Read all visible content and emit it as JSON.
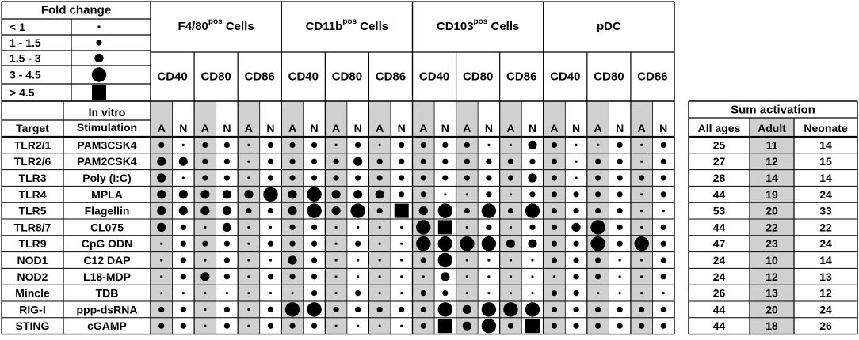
{
  "fold_legend": {
    "title": "Fold change",
    "entries": [
      {
        "label": "< 1",
        "marker": "tiny-dot"
      },
      {
        "label": "1 - 1.5",
        "marker": "small-dot"
      },
      {
        "label": "1.5 - 3",
        "marker": "medium-dot"
      },
      {
        "label": "3 - 4.5",
        "marker": "large-dot"
      },
      {
        "label": "> 4.5",
        "marker": "square"
      }
    ]
  },
  "cell_groups": [
    {
      "name": "F4/80",
      "sup": "pos",
      "suffix": " Cells"
    },
    {
      "name": "CD11b",
      "sup": "pos",
      "suffix": " Cells"
    },
    {
      "name": "CD103",
      "sup": "pos",
      "suffix": " Cells"
    },
    {
      "name": "pDC",
      "sup": "",
      "suffix": ""
    }
  ],
  "markers": [
    "CD40",
    "CD80",
    "CD86"
  ],
  "ages": [
    "A",
    "N"
  ],
  "row_header": {
    "target": "Target",
    "stim_line1": "In vitro",
    "stim_line2": "Stimulation"
  },
  "rows": [
    {
      "target": "TLR2/1",
      "stim": "PAM3CSK4",
      "levels": [
        2,
        1,
        2,
        2,
        1,
        2,
        2,
        2,
        1,
        2,
        1,
        2,
        2,
        2,
        2,
        1,
        1,
        3,
        2,
        1,
        1,
        2,
        1,
        2
      ],
      "sum": [
        25,
        11,
        14
      ]
    },
    {
      "target": "TLR2/6",
      "stim": "PAM2CSK4",
      "levels": [
        3,
        3,
        2,
        2,
        1,
        2,
        2,
        2,
        2,
        3,
        2,
        2,
        2,
        2,
        2,
        2,
        2,
        2,
        2,
        1,
        2,
        2,
        1,
        2
      ],
      "sum": [
        27,
        12,
        15
      ]
    },
    {
      "target": "TLR3",
      "stim": "Poly (I:C)",
      "levels": [
        3,
        1,
        2,
        2,
        1,
        2,
        2,
        2,
        2,
        2,
        2,
        2,
        2,
        2,
        2,
        2,
        2,
        3,
        2,
        1,
        2,
        2,
        2,
        2
      ],
      "sum": [
        28,
        14,
        14
      ]
    },
    {
      "target": "TLR4",
      "stim": "MPLA",
      "levels": [
        3,
        3,
        3,
        3,
        3,
        4,
        3,
        4,
        3,
        3,
        3,
        2,
        2,
        1,
        1,
        2,
        1,
        2,
        2,
        2,
        2,
        2,
        1,
        2
      ],
      "sum": [
        44,
        19,
        24
      ]
    },
    {
      "target": "TLR5",
      "stim": "Flagellin",
      "levels": [
        3,
        3,
        3,
        3,
        2,
        2,
        3,
        4,
        3,
        4,
        2,
        5,
        3,
        4,
        2,
        4,
        2,
        4,
        2,
        2,
        2,
        2,
        1,
        1
      ],
      "sum": [
        53,
        20,
        33
      ]
    },
    {
      "target": "TLR8/7",
      "stim": "CL075",
      "levels": [
        3,
        2,
        1,
        3,
        1,
        1,
        2,
        2,
        1,
        1,
        1,
        1,
        4,
        5,
        1,
        2,
        1,
        2,
        2,
        3,
        4,
        2,
        1,
        2
      ],
      "sum": [
        44,
        22,
        22
      ]
    },
    {
      "target": "TLR9",
      "stim": "CpG ODN",
      "levels": [
        1,
        2,
        2,
        2,
        1,
        2,
        2,
        2,
        1,
        2,
        1,
        1,
        4,
        4,
        4,
        4,
        3,
        3,
        2,
        2,
        4,
        2,
        4,
        2
      ],
      "sum": [
        47,
        23,
        24
      ]
    },
    {
      "target": "NOD1",
      "stim": "C12 DAP",
      "levels": [
        1,
        2,
        1,
        2,
        1,
        1,
        3,
        2,
        1,
        1,
        1,
        1,
        2,
        4,
        1,
        1,
        1,
        1,
        2,
        2,
        2,
        1,
        1,
        2
      ],
      "sum": [
        24,
        10,
        14
      ]
    },
    {
      "target": "NOD2",
      "stim": "L18-MDP",
      "levels": [
        1,
        2,
        3,
        2,
        1,
        2,
        2,
        2,
        1,
        1,
        1,
        1,
        1,
        3,
        1,
        1,
        1,
        1,
        1,
        2,
        2,
        1,
        1,
        2
      ],
      "sum": [
        24,
        12,
        13
      ]
    },
    {
      "target": "Mincle",
      "stim": "TDB",
      "levels": [
        1,
        1,
        1,
        1,
        1,
        1,
        1,
        2,
        1,
        2,
        1,
        1,
        2,
        2,
        1,
        1,
        1,
        1,
        2,
        2,
        1,
        1,
        1,
        1
      ],
      "sum": [
        26,
        13,
        12
      ]
    },
    {
      "target": "RIG-I",
      "stim": "ppp-dsRNA",
      "levels": [
        2,
        2,
        1,
        2,
        1,
        2,
        4,
        4,
        2,
        2,
        2,
        2,
        2,
        4,
        3,
        4,
        4,
        4,
        2,
        2,
        2,
        2,
        2,
        2
      ],
      "sum": [
        44,
        20,
        24
      ]
    },
    {
      "target": "STING",
      "stim": "cGAMP",
      "levels": [
        2,
        2,
        1,
        2,
        1,
        2,
        2,
        2,
        1,
        1,
        1,
        1,
        2,
        5,
        3,
        4,
        2,
        5,
        2,
        2,
        2,
        2,
        2,
        2
      ],
      "sum": [
        44,
        18,
        26
      ]
    }
  ],
  "sum_table": {
    "title": "Sum activation",
    "headers": [
      "All ages",
      "Adult",
      "Neonate"
    ]
  },
  "colors": {
    "adult_shade": "#d0d0d0",
    "line": "#000000",
    "marker": "#000000"
  }
}
